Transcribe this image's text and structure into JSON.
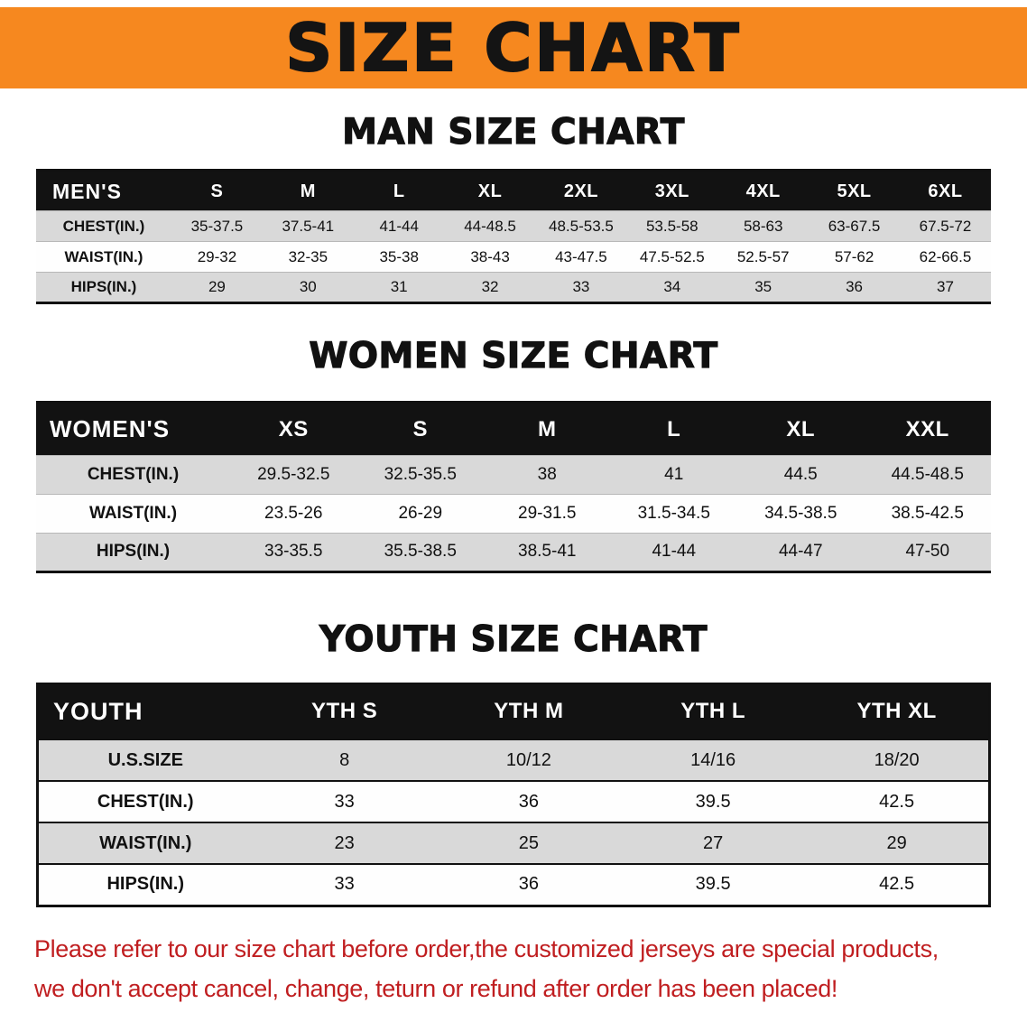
{
  "colors": {
    "banner_bg": "#f6881f",
    "notice_red": "#c01e20"
  },
  "banner": {
    "title": "SIZE CHART"
  },
  "sections": [
    {
      "heading": "MAN SIZE CHART",
      "table": {
        "header": [
          "MEN'S",
          "S",
          "M",
          "L",
          "XL",
          "2XL",
          "3XL",
          "4XL",
          "5XL",
          "6XL"
        ],
        "rows": [
          [
            "CHEST(IN.)",
            "35-37.5",
            "37.5-41",
            "41-44",
            "44-48.5",
            "48.5-53.5",
            "53.5-58",
            "58-63",
            "63-67.5",
            "67.5-72"
          ],
          [
            "WAIST(IN.)",
            "29-32",
            "32-35",
            "35-38",
            "38-43",
            "43-47.5",
            "47.5-52.5",
            "52.5-57",
            "57-62",
            "62-66.5"
          ],
          [
            "HIPS(IN.)",
            "29",
            "30",
            "31",
            "32",
            "33",
            "34",
            "35",
            "36",
            "37"
          ]
        ]
      }
    },
    {
      "heading": "WOMEN SIZE CHART",
      "table": {
        "header": [
          "WOMEN'S",
          "XS",
          "S",
          "M",
          "L",
          "XL",
          "XXL"
        ],
        "rows": [
          [
            "CHEST(IN.)",
            "29.5-32.5",
            "32.5-35.5",
            "38",
            "41",
            "44.5",
            "44.5-48.5"
          ],
          [
            "WAIST(IN.)",
            "23.5-26",
            "26-29",
            "29-31.5",
            "31.5-34.5",
            "34.5-38.5",
            "38.5-42.5"
          ],
          [
            "HIPS(IN.)",
            "33-35.5",
            "35.5-38.5",
            "38.5-41",
            "41-44",
            "44-47",
            "47-50"
          ]
        ]
      }
    },
    {
      "heading": "YOUTH SIZE CHART",
      "table": {
        "header": [
          "YOUTH",
          "YTH S",
          "YTH M",
          "YTH L",
          "YTH XL"
        ],
        "rows": [
          [
            "U.S.SIZE",
            "8",
            "10/12",
            "14/16",
            "18/20"
          ],
          [
            "CHEST(IN.)",
            "33",
            "36",
            "39.5",
            "42.5"
          ],
          [
            "WAIST(IN.)",
            "23",
            "25",
            "27",
            "29"
          ],
          [
            "HIPS(IN.)",
            "33",
            "36",
            "39.5",
            "42.5"
          ]
        ]
      }
    }
  ],
  "footer": {
    "line1": "Please refer to our size chart before order,the customized jerseys are special products,",
    "line2": "we don't accept cancel, change, teturn or refund after order has been placed!"
  }
}
